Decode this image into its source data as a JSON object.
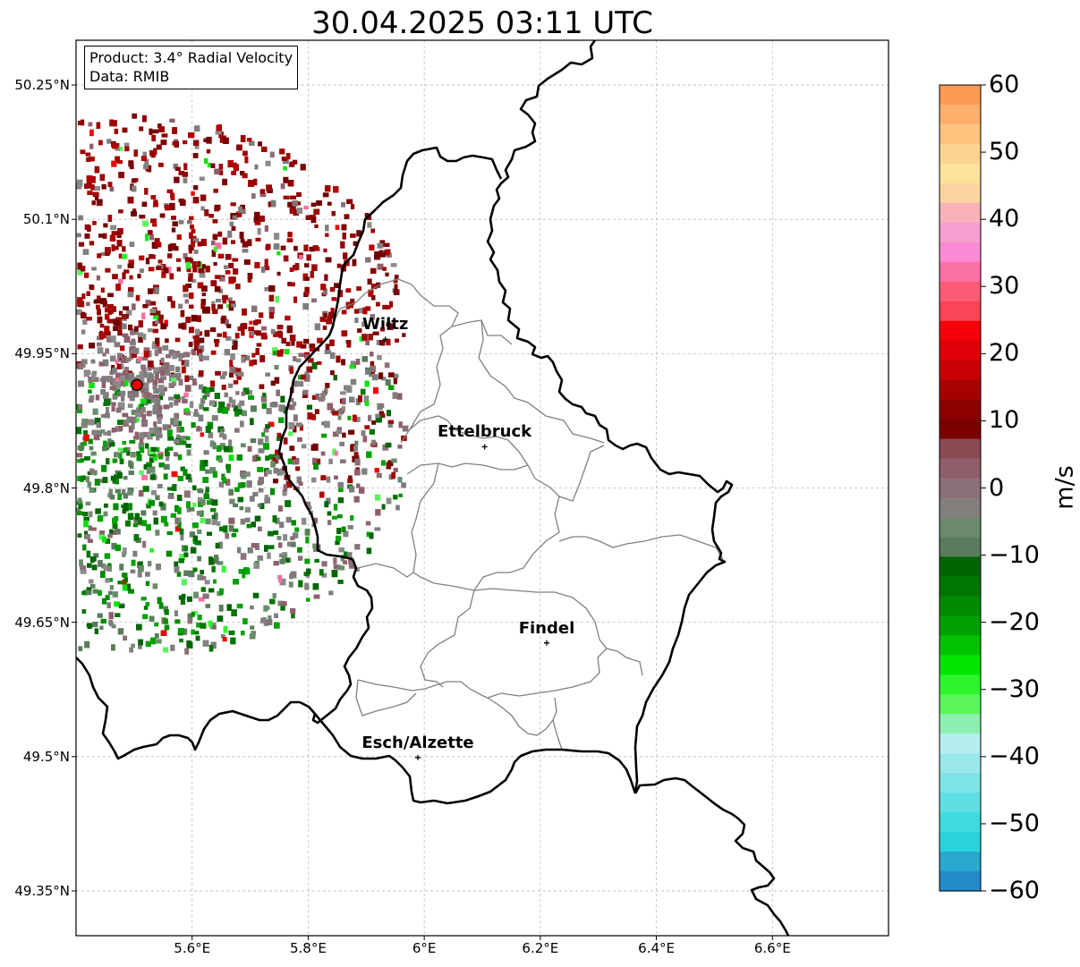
{
  "title": "30.04.2025 03:11 UTC",
  "info": {
    "product": "Product: 3.4° Radial Velocity",
    "source": "Data: RMIB"
  },
  "map": {
    "lat_range": [
      49.3,
      50.3
    ],
    "lon_range": [
      5.4,
      6.8
    ],
    "lat_ticks": [
      "50.25°N",
      "50.1°N",
      "49.95°N",
      "49.8°N",
      "49.65°N",
      "49.5°N",
      "49.35°N"
    ],
    "lon_ticks": [
      "5.6°E",
      "5.8°E",
      "6°E",
      "6.2°E",
      "6.4°E",
      "6.6°E"
    ],
    "gridlines": true,
    "radar_site": {
      "lat": 49.915,
      "lon": 5.505
    },
    "cities": [
      {
        "name": "Wiltz",
        "lat": 49.966,
        "lon": 5.933
      },
      {
        "name": "Ettelbruck",
        "lat": 49.846,
        "lon": 6.104
      },
      {
        "name": "Findel",
        "lat": 49.627,
        "lon": 6.211
      },
      {
        "name": "Esch/Alzette",
        "lat": 49.499,
        "lon": 5.989
      }
    ]
  },
  "colorbar": {
    "label": "m/s",
    "min": -60,
    "max": 60,
    "ticks": [
      "60",
      "50",
      "40",
      "30",
      "20",
      "10",
      "0",
      "−10",
      "−20",
      "−30",
      "−40",
      "−50",
      "−60"
    ],
    "colors_top_to_bottom": [
      "#fd9a53",
      "#fdb06b",
      "#fdc37f",
      "#fbd58f",
      "#fde39a",
      "#f9d4a1",
      "#f8b2b8",
      "#f89fcf",
      "#fb8ad4",
      "#fb70a5",
      "#fc5b76",
      "#fa4558",
      "#f4020b",
      "#de0006",
      "#c60004",
      "#a90002",
      "#8c0000",
      "#7a0000",
      "#8a4a54",
      "#8e5f6a",
      "#8a7077",
      "#837f7d",
      "#6b8a6d",
      "#5a7c5c",
      "#006500",
      "#007500",
      "#008a00",
      "#00a000",
      "#00c200",
      "#00e400",
      "#2cf52c",
      "#5af55a",
      "#8ef0b0",
      "#b6eeef",
      "#9ae8ea",
      "#7de3e6",
      "#5fdfe2",
      "#40dbde",
      "#28d3dc",
      "#2aa8d0",
      "#2389c7"
    ]
  }
}
